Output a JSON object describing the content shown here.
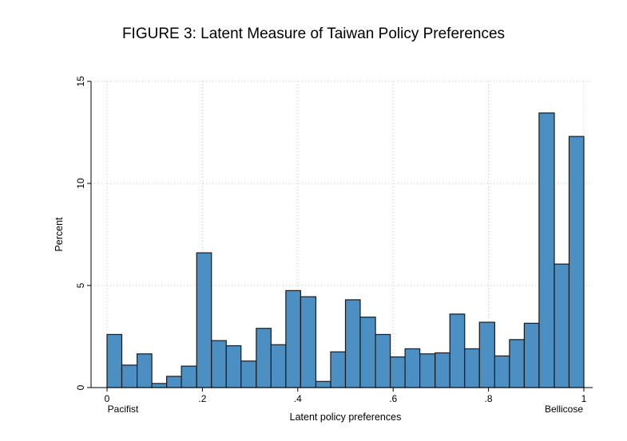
{
  "chart_data": {
    "type": "bar",
    "title": "FIGURE 3: Latent Measure of Taiwan Policy Preferences",
    "xlabel": "Latent policy preferences",
    "ylabel": "Percent",
    "xlim": [
      0,
      1
    ],
    "ylim": [
      0,
      15
    ],
    "x_ticks": [
      "0",
      ".2",
      ".4",
      ".6",
      ".8",
      "1"
    ],
    "y_ticks": [
      "0",
      "5",
      "10",
      "15"
    ],
    "x_end_labels": {
      "left": "Pacifist",
      "right": "Bellicose"
    },
    "grid": true,
    "bar_color": "#4b8fc3",
    "bar_edge_color": "#1a1a1a",
    "bins": [
      {
        "start": 0.0,
        "end": 0.031,
        "value": 2.6
      },
      {
        "start": 0.031,
        "end": 0.063,
        "value": 1.1
      },
      {
        "start": 0.063,
        "end": 0.094,
        "value": 1.65
      },
      {
        "start": 0.094,
        "end": 0.125,
        "value": 0.2
      },
      {
        "start": 0.125,
        "end": 0.156,
        "value": 0.55
      },
      {
        "start": 0.156,
        "end": 0.188,
        "value": 1.05
      },
      {
        "start": 0.188,
        "end": 0.219,
        "value": 6.6
      },
      {
        "start": 0.219,
        "end": 0.25,
        "value": 2.3
      },
      {
        "start": 0.25,
        "end": 0.281,
        "value": 2.05
      },
      {
        "start": 0.281,
        "end": 0.313,
        "value": 1.3
      },
      {
        "start": 0.313,
        "end": 0.344,
        "value": 2.9
      },
      {
        "start": 0.344,
        "end": 0.375,
        "value": 2.1
      },
      {
        "start": 0.375,
        "end": 0.406,
        "value": 4.75
      },
      {
        "start": 0.406,
        "end": 0.438,
        "value": 4.45
      },
      {
        "start": 0.438,
        "end": 0.469,
        "value": 0.3
      },
      {
        "start": 0.469,
        "end": 0.5,
        "value": 1.75
      },
      {
        "start": 0.5,
        "end": 0.531,
        "value": 4.3
      },
      {
        "start": 0.531,
        "end": 0.563,
        "value": 3.45
      },
      {
        "start": 0.563,
        "end": 0.594,
        "value": 2.6
      },
      {
        "start": 0.594,
        "end": 0.625,
        "value": 1.5
      },
      {
        "start": 0.625,
        "end": 0.656,
        "value": 1.9
      },
      {
        "start": 0.656,
        "end": 0.688,
        "value": 1.65
      },
      {
        "start": 0.688,
        "end": 0.719,
        "value": 1.7
      },
      {
        "start": 0.719,
        "end": 0.75,
        "value": 3.6
      },
      {
        "start": 0.75,
        "end": 0.781,
        "value": 1.9
      },
      {
        "start": 0.781,
        "end": 0.813,
        "value": 3.2
      },
      {
        "start": 0.813,
        "end": 0.844,
        "value": 1.55
      },
      {
        "start": 0.844,
        "end": 0.875,
        "value": 2.35
      },
      {
        "start": 0.875,
        "end": 0.906,
        "value": 3.15
      },
      {
        "start": 0.906,
        "end": 0.938,
        "value": 13.45
      },
      {
        "start": 0.938,
        "end": 0.969,
        "value": 6.05
      },
      {
        "start": 0.969,
        "end": 1.0,
        "value": 12.3
      }
    ]
  }
}
